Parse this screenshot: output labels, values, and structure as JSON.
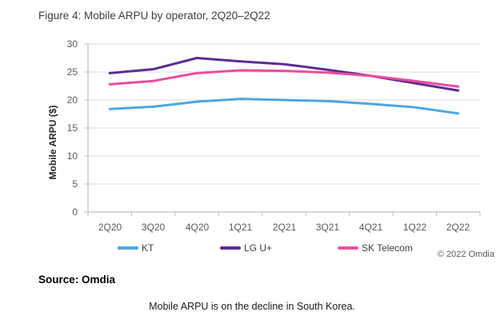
{
  "figure": {
    "title": "Figure 4: Mobile ARPU by operator, 2Q20–2Q22",
    "source": "Source: Omdia",
    "copyright": "© 2022 Omdia",
    "caption": "Mobile ARPU is on the decline in South Korea."
  },
  "chart_data": {
    "type": "line",
    "title": "Figure 4: Mobile ARPU by operator, 2Q20–2Q22",
    "xlabel": "",
    "ylabel": "Mobile ARPU ($)",
    "ylim": [
      0,
      30
    ],
    "ytick_step": 5,
    "ytick_labels": [
      "0",
      "5",
      "10",
      "15",
      "20",
      "25",
      "30"
    ],
    "grid": true,
    "legend_position": "bottom",
    "categories": [
      "2Q20",
      "3Q20",
      "4Q20",
      "1Q21",
      "2Q21",
      "3Q21",
      "4Q21",
      "1Q22",
      "2Q22"
    ],
    "series": [
      {
        "name": "KT",
        "color": "#4BA7E0",
        "values": [
          18.4,
          18.8,
          19.7,
          20.2,
          20.0,
          19.8,
          19.3,
          18.7,
          17.6
        ]
      },
      {
        "name": "LG U+",
        "color": "#5C2D91",
        "values": [
          24.8,
          25.5,
          27.5,
          26.9,
          26.4,
          25.4,
          24.3,
          23.0,
          21.7
        ]
      },
      {
        "name": "SK Telecom",
        "color": "#EC4B9B",
        "values": [
          22.8,
          23.4,
          24.8,
          25.3,
          25.2,
          24.9,
          24.3,
          23.4,
          22.4
        ]
      }
    ],
    "colors": {
      "gridline": "#d9d9d9",
      "axis": "#bfbfbf"
    }
  }
}
